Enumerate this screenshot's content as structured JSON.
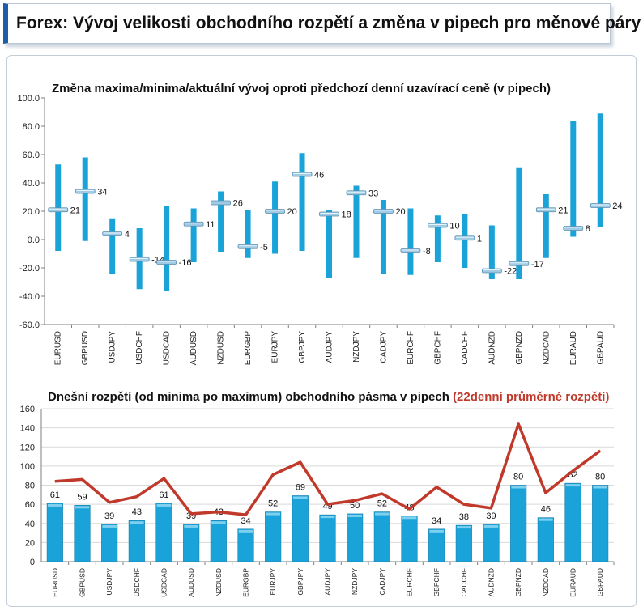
{
  "header": {
    "title": "Forex: Vývoj velikosti obchodního rozpětí a změna v pipech pro měnové páry"
  },
  "colors": {
    "accent": "#1a5fa8",
    "bar": "#1aa3d8",
    "line": "#c0392b"
  },
  "chart_data": [
    {
      "type": "range",
      "title": "Změna maxima/minima/aktuální vývoj oproti předchozí denní uzavírací ceně (v pipech)",
      "ylim": [
        -60,
        100
      ],
      "ytick_labels": [
        "100.0",
        "80.0",
        "60.0",
        "40.0",
        "20.0",
        "0.0",
        "-20.0",
        "-40.0",
        "-60.0"
      ],
      "categories": [
        "EURUSD",
        "GBPUSD",
        "USDJPY",
        "USDCHF",
        "USDCAD",
        "AUDUSD",
        "NZDUSD",
        "EURGBP",
        "EURJPY",
        "GBPJPY",
        "AUDJPY",
        "NZDJPY",
        "CADJPY",
        "EURCHF",
        "GBPCHF",
        "CADCHF",
        "AUDNZD",
        "GBPNZD",
        "NZDCAD",
        "EURAUD",
        "GBPAUD"
      ],
      "high": [
        53,
        58,
        15,
        8,
        24,
        22,
        34,
        21,
        41,
        61,
        21,
        38,
        28,
        22,
        17,
        18,
        10,
        51,
        32,
        84,
        89
      ],
      "low": [
        -8,
        -1,
        -24,
        -35,
        -36,
        -16,
        -9,
        -13,
        -10,
        -8,
        -27,
        -13,
        -24,
        -25,
        -16,
        -20,
        -28,
        -28,
        -13,
        2,
        9
      ],
      "current": [
        21,
        34,
        4,
        -14,
        -16,
        11,
        26,
        -5,
        20,
        46,
        18,
        33,
        20,
        -8,
        10,
        1,
        -22,
        -17,
        21,
        8,
        24
      ],
      "current_labels": [
        "21",
        "34",
        "4",
        "-14",
        "-16",
        "11",
        "26",
        "-5",
        "20",
        "46",
        "18",
        "33",
        "20",
        "-8",
        "10",
        "1",
        "-22",
        "-17",
        "21",
        "8",
        "24"
      ]
    },
    {
      "type": "bar+line",
      "title": "Dnešní rozpětí (od minima po maximum) obchodního pásma v pipech",
      "title_highlight": "(22denní průměrné rozpětí)",
      "ylim": [
        0,
        160
      ],
      "ytick_labels": [
        "160",
        "140",
        "120",
        "100",
        "80",
        "60",
        "40",
        "20",
        "0"
      ],
      "categories": [
        "EURUSD",
        "GBPUSD",
        "USDJPY",
        "USDCHF",
        "USDCAD",
        "AUDUSD",
        "NZDUSD",
        "EURGBP",
        "EURJPY",
        "GBPJPY",
        "AUDJPY",
        "NZDJPY",
        "CADJPY",
        "EURCHF",
        "GBPCHF",
        "CADCHF",
        "AUDNZD",
        "GBPNZD",
        "NZDCAD",
        "EURAUD",
        "GBPAUD"
      ],
      "series": [
        {
          "values": [
            61,
            59,
            39,
            43,
            61,
            39,
            43,
            34,
            52,
            69,
            49,
            50,
            52,
            48,
            34,
            38,
            39,
            80,
            46,
            82,
            80
          ],
          "labels": [
            "61",
            "59",
            "39",
            "43",
            "61",
            "39",
            "43",
            "34",
            "52",
            "69",
            "49",
            "50",
            "52",
            "48",
            "34",
            "38",
            "39",
            "80",
            "46",
            "82",
            "80"
          ]
        },
        {
          "values": [
            84,
            86,
            62,
            68,
            87,
            50,
            52,
            49,
            91,
            104,
            60,
            64,
            71,
            55,
            78,
            60,
            56,
            144,
            72,
            95,
            116
          ]
        }
      ]
    }
  ]
}
